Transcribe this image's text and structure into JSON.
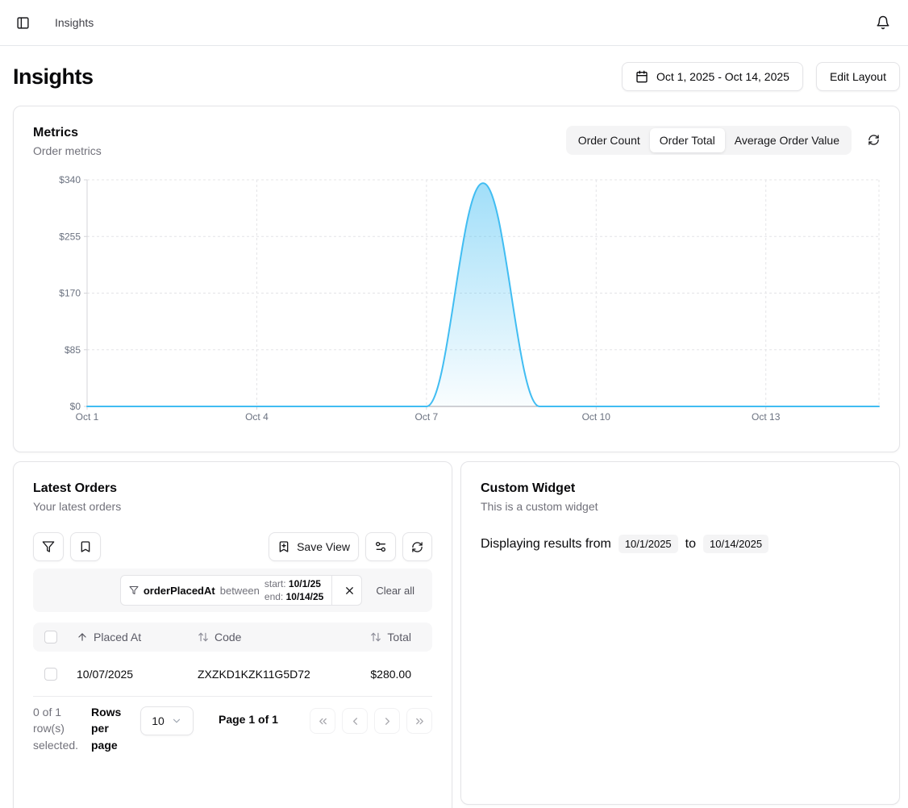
{
  "topbar": {
    "breadcrumb": "Insights"
  },
  "header": {
    "title": "Insights",
    "date_range": "Oct 1, 2025 - Oct 14, 2025",
    "edit_layout_label": "Edit Layout"
  },
  "metrics": {
    "title": "Metrics",
    "subtitle": "Order metrics",
    "tabs": [
      {
        "label": "Order Count",
        "active": false
      },
      {
        "label": "Order Total",
        "active": true
      },
      {
        "label": "Average Order Value",
        "active": false
      }
    ]
  },
  "chart_data": {
    "type": "area",
    "title": "Order Total",
    "categories": [
      "Oct 1",
      "Oct 2",
      "Oct 3",
      "Oct 4",
      "Oct 5",
      "Oct 6",
      "Oct 7",
      "Oct 8",
      "Oct 9",
      "Oct 10",
      "Oct 11",
      "Oct 12",
      "Oct 13",
      "Oct 14"
    ],
    "values": [
      0,
      0,
      0,
      0,
      0,
      0,
      0,
      335,
      0,
      0,
      0,
      0,
      0,
      0
    ],
    "ylim": [
      0,
      340
    ],
    "ytick_values": [
      340,
      255,
      170,
      85,
      0
    ],
    "ytick_labels": [
      "$340",
      "$255",
      "$170",
      "$85",
      "$0"
    ],
    "xtick_positions": [
      0,
      3,
      6,
      9,
      12
    ],
    "xtick_labels": [
      "Oct 1",
      "Oct 4",
      "Oct 7",
      "Oct 10",
      "Oct 13"
    ],
    "grid": true,
    "legend": false,
    "line_color": "#41bdf2",
    "smoothing": "spline"
  },
  "latest_orders": {
    "title": "Latest Orders",
    "subtitle": "Your latest orders",
    "toolbar": {
      "save_view_label": "Save View"
    },
    "filter": {
      "field": "orderPlacedAt",
      "operator": "between",
      "start_label": "start:",
      "start_value": "10/1/25",
      "end_label": "end:",
      "end_value": "10/14/25",
      "clear_all_label": "Clear all"
    },
    "table": {
      "columns": [
        "Placed At",
        "Code",
        "Total"
      ],
      "rows": [
        {
          "placed_at": "10/07/2025",
          "code": "ZXZKD1KZK11G5D72",
          "total": "$280.00"
        }
      ]
    },
    "pagination": {
      "selected_text": "0 of 1 row(s) selected.",
      "rows_per_page_label": "Rows per page",
      "rows_per_page_value": "10",
      "page_info": "Page 1 of 1"
    }
  },
  "custom_widget": {
    "title": "Custom Widget",
    "subtitle": "This is a custom widget",
    "body_prefix": "Displaying results from",
    "from_date": "10/1/2025",
    "body_middle": "to",
    "to_date": "10/14/2025"
  }
}
